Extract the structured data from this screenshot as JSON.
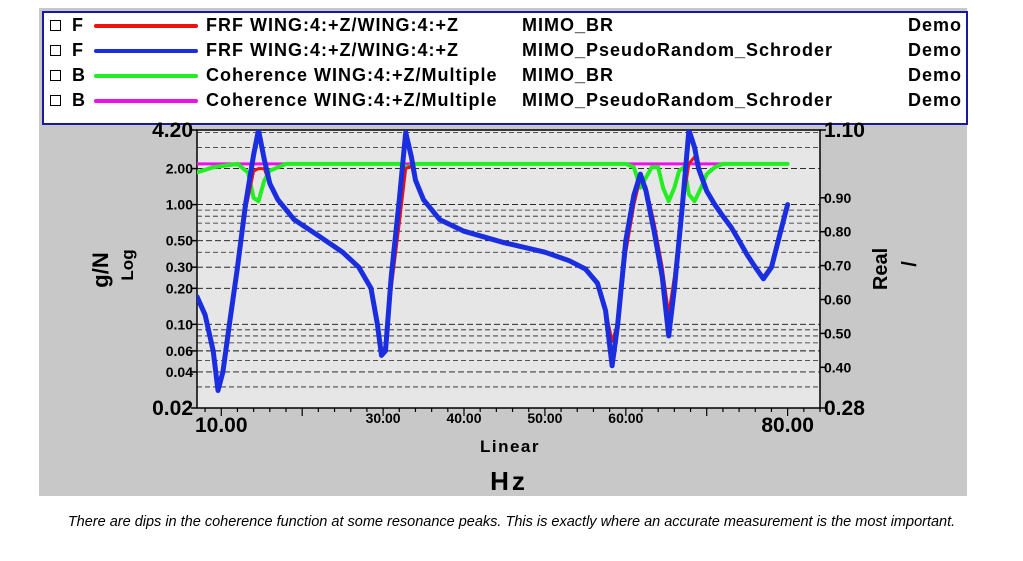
{
  "legend": [
    {
      "flag": "F",
      "color": "#ee1111",
      "name": "FRF WING:4:+Z/WING:4:+Z",
      "source": "MIMO_BR",
      "project": "Demo"
    },
    {
      "flag": "F",
      "color": "#1a2ee0",
      "name": "FRF WING:4:+Z/WING:4:+Z",
      "source": "MIMO_PseudoRandom_Schroder",
      "project": "Demo"
    },
    {
      "flag": "B",
      "color": "#22ee22",
      "name": "Coherence WING:4:+Z/Multiple",
      "source": "MIMO_BR",
      "project": "Demo"
    },
    {
      "flag": "B",
      "color": "#ee11ee",
      "name": "Coherence WING:4:+Z/Multiple",
      "source": "MIMO_PseudoRandom_Schroder",
      "project": "Demo"
    }
  ],
  "chart_data": {
    "type": "line",
    "x_unit": "Hz",
    "x_scale_label": "Linear",
    "left_axis": {
      "label": "g/N",
      "scale_label": "Log",
      "scale": "log",
      "range": [
        0.02,
        4.2
      ],
      "ticks": [
        "4.20",
        "2.00",
        "1.00",
        "0.50",
        "0.30",
        "0.20",
        "0.10",
        "0.06",
        "0.04",
        "0.02"
      ],
      "tick_values": [
        4.2,
        2.0,
        1.0,
        0.5,
        0.3,
        0.2,
        0.1,
        0.06,
        0.04,
        0.02
      ]
    },
    "right_axis": {
      "label": "Real",
      "scale_label": "/",
      "scale": "linear",
      "range": [
        0.28,
        1.1
      ],
      "ticks": [
        "1.10",
        "0.90",
        "0.80",
        "0.70",
        "0.60",
        "0.50",
        "0.40",
        "0.28"
      ],
      "tick_values": [
        1.1,
        0.9,
        0.8,
        0.7,
        0.6,
        0.5,
        0.4,
        0.28
      ]
    },
    "x_axis": {
      "range": [
        7,
        84
      ],
      "ticks": [
        "10.00",
        "30.00",
        "40.00",
        "50.00",
        "60.00",
        "80.00"
      ],
      "tick_values": [
        10,
        30,
        40,
        50,
        60,
        80
      ]
    },
    "series": [
      {
        "axis": "left",
        "color": "#ee1111",
        "width": 3,
        "points": [
          [
            7,
            0.17
          ],
          [
            8,
            0.12
          ],
          [
            9,
            0.06
          ],
          [
            9.6,
            0.03
          ],
          [
            10.2,
            0.04
          ],
          [
            11,
            0.1
          ],
          [
            12,
            0.3
          ],
          [
            13,
            0.9
          ],
          [
            14,
            1.9
          ],
          [
            14.6,
            2.0
          ],
          [
            15.3,
            2.0
          ],
          [
            16,
            1.5
          ],
          [
            17,
            1.1
          ],
          [
            19,
            0.75
          ],
          [
            22,
            0.55
          ],
          [
            25,
            0.4
          ],
          [
            27,
            0.3
          ],
          [
            28.5,
            0.2
          ],
          [
            29.3,
            0.1
          ],
          [
            29.8,
            0.06
          ],
          [
            30.3,
            0.065
          ],
          [
            31,
            0.2
          ],
          [
            32,
            0.7
          ],
          [
            32.8,
            2.0
          ],
          [
            33.5,
            2.1
          ],
          [
            34,
            1.6
          ],
          [
            35,
            1.1
          ],
          [
            37,
            0.75
          ],
          [
            40,
            0.6
          ],
          [
            45,
            0.48
          ],
          [
            50,
            0.4
          ],
          [
            53,
            0.34
          ],
          [
            55,
            0.29
          ],
          [
            56.5,
            0.22
          ],
          [
            57.5,
            0.13
          ],
          [
            58.3,
            0.072
          ],
          [
            59,
            0.1
          ],
          [
            60,
            0.4
          ],
          [
            61,
            1.0
          ],
          [
            61.8,
            1.7
          ],
          [
            62.5,
            1.4
          ],
          [
            63.5,
            0.7
          ],
          [
            64.5,
            0.3
          ],
          [
            65.3,
            0.12
          ],
          [
            66,
            0.25
          ],
          [
            67,
            1.0
          ],
          [
            67.8,
            2.2
          ],
          [
            68.5,
            2.5
          ],
          [
            69,
            2.0
          ],
          [
            70,
            1.3
          ],
          [
            71,
            1.0
          ],
          [
            72,
            0.8
          ],
          [
            73,
            0.65
          ],
          [
            74,
            0.5
          ],
          [
            75,
            0.38
          ],
          [
            76,
            0.3
          ],
          [
            77,
            0.25
          ],
          [
            78,
            0.31
          ],
          [
            79,
            0.55
          ],
          [
            80,
            1.0
          ]
        ]
      },
      {
        "axis": "left",
        "color": "#1a2ee0",
        "width": 5,
        "points": [
          [
            7,
            0.17
          ],
          [
            8,
            0.12
          ],
          [
            9,
            0.06
          ],
          [
            9.6,
            0.028
          ],
          [
            10.2,
            0.04
          ],
          [
            11,
            0.1
          ],
          [
            12,
            0.3
          ],
          [
            13,
            1.0
          ],
          [
            14,
            2.6
          ],
          [
            14.6,
            4.2
          ],
          [
            15.3,
            2.4
          ],
          [
            16,
            1.5
          ],
          [
            17,
            1.1
          ],
          [
            19,
            0.75
          ],
          [
            22,
            0.55
          ],
          [
            25,
            0.4
          ],
          [
            27,
            0.3
          ],
          [
            28.5,
            0.2
          ],
          [
            29.3,
            0.1
          ],
          [
            29.8,
            0.055
          ],
          [
            30.3,
            0.06
          ],
          [
            31,
            0.25
          ],
          [
            32,
            1.1
          ],
          [
            32.8,
            4.0
          ],
          [
            33.5,
            2.5
          ],
          [
            34,
            1.6
          ],
          [
            35,
            1.1
          ],
          [
            37,
            0.75
          ],
          [
            40,
            0.6
          ],
          [
            45,
            0.48
          ],
          [
            50,
            0.4
          ],
          [
            53,
            0.34
          ],
          [
            55,
            0.29
          ],
          [
            56.5,
            0.22
          ],
          [
            57.5,
            0.13
          ],
          [
            58.3,
            0.045
          ],
          [
            59,
            0.1
          ],
          [
            60,
            0.5
          ],
          [
            61,
            1.2
          ],
          [
            61.8,
            1.8
          ],
          [
            62.5,
            1.3
          ],
          [
            63.5,
            0.6
          ],
          [
            64.5,
            0.25
          ],
          [
            65.3,
            0.08
          ],
          [
            66,
            0.2
          ],
          [
            67,
            1.0
          ],
          [
            67.8,
            4.2
          ],
          [
            68.5,
            3.0
          ],
          [
            69,
            2.0
          ],
          [
            70,
            1.3
          ],
          [
            71,
            1.0
          ],
          [
            72,
            0.8
          ],
          [
            73,
            0.65
          ],
          [
            74,
            0.5
          ],
          [
            75,
            0.38
          ],
          [
            76,
            0.3
          ],
          [
            77,
            0.24
          ],
          [
            78,
            0.3
          ],
          [
            79,
            0.55
          ],
          [
            80,
            1.0
          ]
        ]
      },
      {
        "axis": "right",
        "color": "#22ee22",
        "width": 4,
        "points": [
          [
            7,
            0.975
          ],
          [
            9,
            0.99
          ],
          [
            12,
            1.0
          ],
          [
            13.3,
            0.975
          ],
          [
            14,
            0.9
          ],
          [
            14.6,
            0.89
          ],
          [
            15.3,
            0.95
          ],
          [
            16,
            0.98
          ],
          [
            17,
            0.99
          ],
          [
            18,
            1.0
          ],
          [
            30,
            1.0
          ],
          [
            32,
            1.0
          ],
          [
            33,
            0.99
          ],
          [
            34,
            1.0
          ],
          [
            56,
            1.0
          ],
          [
            60,
            1.0
          ],
          [
            61,
            0.99
          ],
          [
            61.8,
            0.93
          ],
          [
            62.5,
            0.96
          ],
          [
            63.2,
            0.99
          ],
          [
            64,
            0.99
          ],
          [
            64.6,
            0.93
          ],
          [
            65.3,
            0.89
          ],
          [
            66,
            0.93
          ],
          [
            66.6,
            0.98
          ],
          [
            67.2,
            0.99
          ],
          [
            67.8,
            0.91
          ],
          [
            68.5,
            0.89
          ],
          [
            69.3,
            0.93
          ],
          [
            70,
            0.97
          ],
          [
            71,
            0.99
          ],
          [
            72,
            1.0
          ],
          [
            80,
            1.0
          ]
        ]
      },
      {
        "axis": "right",
        "color": "#ee11ee",
        "width": 3,
        "points": [
          [
            7,
            1.0
          ],
          [
            80,
            1.0
          ]
        ]
      }
    ]
  },
  "caption": "There are dips in the coherence function at some resonance peaks. This is exactly where an accurate measurement is the most important."
}
